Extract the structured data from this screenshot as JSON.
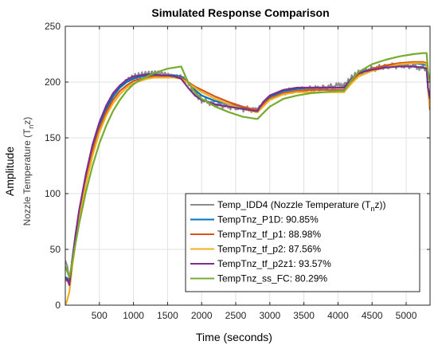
{
  "chart_data": {
    "type": "line",
    "title": "Simulated Response Comparison",
    "xlabel": "Time (seconds)",
    "ylabel": "Amplitude",
    "ylabel_sub": "Nozzle Temperature (T",
    "ylabel_sub_subscript": "n",
    "ylabel_sub_tail": "z)",
    "xlim": [
      0,
      5350
    ],
    "ylim": [
      0,
      250
    ],
    "xticks": [
      500,
      1000,
      1500,
      2000,
      2500,
      3000,
      3500,
      4000,
      4500,
      5000
    ],
    "yticks": [
      0,
      50,
      100,
      150,
      200,
      250
    ],
    "grid": true,
    "legend_position": "bottom-right",
    "series": [
      {
        "name": "Temp_IDD4 (Nozzle Temperature (T",
        "name_subscript": "n",
        "name_tail": "z))",
        "color": "#8c8c8c",
        "noisy": true,
        "x": [
          0,
          30,
          60,
          100,
          150,
          200,
          300,
          400,
          500,
          600,
          700,
          800,
          900,
          1000,
          1100,
          1200,
          1300,
          1400,
          1500,
          1600,
          1700,
          1800,
          1900,
          2000,
          2200,
          2400,
          2600,
          2800,
          2820,
          2900,
          3000,
          3200,
          3400,
          3600,
          3800,
          4000,
          4090,
          4100,
          4200,
          4300,
          4500,
          4700,
          4900,
          5100,
          5250,
          5300,
          5320,
          5350
        ],
        "y": [
          40,
          35,
          22,
          40,
          60,
          80,
          113,
          140,
          161,
          177,
          188,
          196,
          202,
          205,
          206,
          207,
          208,
          208,
          207,
          206,
          205,
          200,
          190,
          184,
          180,
          178,
          176,
          175,
          175,
          180,
          186,
          191,
          193,
          194,
          195,
          197,
          197,
          198,
          204,
          208,
          212,
          214,
          215,
          214,
          213,
          212,
          195,
          188
        ]
      },
      {
        "name": "TempTnz_P1D: 90.85%",
        "color": "#0072bd",
        "x": [
          0,
          30,
          60,
          100,
          150,
          200,
          300,
          400,
          500,
          600,
          700,
          800,
          900,
          1000,
          1100,
          1200,
          1300,
          1400,
          1500,
          1600,
          1700,
          1800,
          1900,
          2000,
          2200,
          2400,
          2600,
          2800,
          2820,
          2900,
          3000,
          3200,
          3400,
          3600,
          3800,
          4000,
          4090,
          4100,
          4200,
          4300,
          4500,
          4700,
          4900,
          5100,
          5250,
          5300,
          5320,
          5350
        ],
        "y": [
          25,
          24,
          20,
          40,
          62,
          82,
          114,
          141,
          161,
          176,
          187,
          195,
          200,
          203,
          205,
          206,
          206,
          206,
          206,
          206,
          205,
          200,
          193,
          188,
          183,
          180,
          177,
          175,
          175,
          181,
          187,
          192,
          194,
          195,
          195,
          195,
          195,
          196,
          203,
          208,
          212,
          214,
          216,
          217,
          216,
          215,
          195,
          182
        ]
      },
      {
        "name": "TempTnz_tf_p1: 88.98%",
        "color": "#d95319",
        "x": [
          0,
          30,
          60,
          100,
          150,
          200,
          300,
          400,
          500,
          600,
          700,
          800,
          900,
          1000,
          1100,
          1200,
          1300,
          1400,
          1500,
          1600,
          1700,
          1800,
          1900,
          2000,
          2200,
          2400,
          2600,
          2800,
          2820,
          2900,
          3000,
          3200,
          3400,
          3600,
          3800,
          4000,
          4090,
          4100,
          4200,
          4300,
          4500,
          4700,
          4900,
          5100,
          5250,
          5300,
          5320,
          5350
        ],
        "y": [
          22,
          22,
          20,
          38,
          60,
          80,
          112,
          138,
          158,
          173,
          184,
          192,
          197,
          201,
          203,
          204,
          205,
          205,
          205,
          205,
          204,
          200,
          196,
          193,
          187,
          182,
          178,
          175,
          175,
          180,
          185,
          190,
          192,
          193,
          193,
          193,
          193,
          194,
          201,
          207,
          212,
          215,
          217,
          218,
          218,
          217,
          195,
          175
        ]
      },
      {
        "name": "TempTnz_tf_p2: 87.56%",
        "color": "#edb120",
        "x": [
          0,
          30,
          60,
          100,
          150,
          200,
          300,
          400,
          500,
          600,
          700,
          800,
          900,
          1000,
          1100,
          1200,
          1300,
          1400,
          1500,
          1600,
          1700,
          1800,
          1900,
          2000,
          2200,
          2400,
          2600,
          2800,
          2820,
          2900,
          3000,
          3200,
          3400,
          3600,
          3800,
          4000,
          4090,
          4100,
          4200,
          4300,
          4500,
          4700,
          4900,
          5100,
          5250,
          5300,
          5320,
          5350
        ],
        "y": [
          0,
          5,
          12,
          34,
          56,
          76,
          108,
          134,
          155,
          170,
          181,
          189,
          195,
          199,
          201,
          203,
          204,
          204,
          204,
          204,
          203,
          199,
          195,
          191,
          185,
          180,
          176,
          173,
          173,
          178,
          184,
          189,
          191,
          191,
          191,
          191,
          191,
          192,
          199,
          205,
          210,
          213,
          216,
          217,
          217,
          216,
          195,
          178
        ]
      },
      {
        "name": "TempTnz_tf_p2z1: 93.57%",
        "color": "#7e2f8e",
        "x": [
          0,
          30,
          60,
          100,
          150,
          200,
          300,
          400,
          500,
          600,
          700,
          800,
          900,
          1000,
          1100,
          1200,
          1300,
          1400,
          1500,
          1600,
          1700,
          1800,
          1900,
          2000,
          2200,
          2400,
          2600,
          2800,
          2820,
          2900,
          3000,
          3200,
          3400,
          3600,
          3800,
          4000,
          4090,
          4100,
          4200,
          4300,
          4500,
          4700,
          4900,
          5100,
          5250,
          5300,
          5320,
          5350
        ],
        "y": [
          24,
          23,
          18,
          40,
          63,
          84,
          117,
          144,
          164,
          179,
          190,
          197,
          202,
          205,
          206,
          207,
          207,
          206,
          206,
          205,
          203,
          195,
          188,
          184,
          180,
          178,
          176,
          174,
          174,
          182,
          188,
          193,
          195,
          195,
          195,
          195,
          195,
          196,
          203,
          208,
          211,
          213,
          214,
          214,
          213,
          212,
          195,
          185
        ]
      },
      {
        "name": "TempTnz_ss_FC: 80.29%",
        "color": "#77ac30",
        "x": [
          0,
          30,
          60,
          100,
          150,
          200,
          300,
          400,
          500,
          600,
          700,
          800,
          900,
          1000,
          1100,
          1200,
          1300,
          1400,
          1500,
          1600,
          1700,
          1800,
          1900,
          2000,
          2200,
          2400,
          2600,
          2800,
          2820,
          2900,
          3000,
          3200,
          3400,
          3600,
          3800,
          4000,
          4090,
          4100,
          4200,
          4300,
          4500,
          4700,
          4900,
          5100,
          5250,
          5300,
          5320,
          5350
        ],
        "y": [
          35,
          30,
          25,
          38,
          55,
          72,
          101,
          125,
          145,
          161,
          174,
          184,
          192,
          198,
          202,
          205,
          208,
          210,
          212,
          213,
          214,
          200,
          191,
          185,
          178,
          173,
          169,
          167,
          167,
          172,
          178,
          185,
          188,
          190,
          191,
          192,
          192,
          193,
          202,
          209,
          216,
          220,
          223,
          225,
          226,
          226,
          210,
          200
        ]
      }
    ]
  }
}
